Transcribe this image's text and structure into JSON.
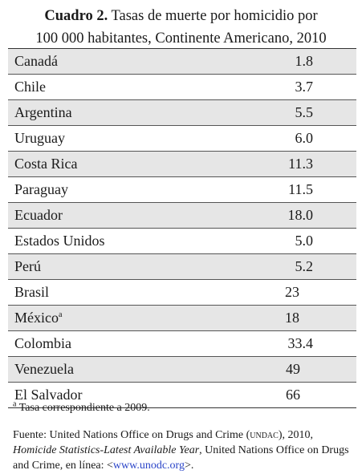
{
  "title": {
    "label": "Cuadro 2.",
    "text_line1": "Tasas de muerte por homicidio por",
    "text_line2": "100 000 habitantes, Continente Americano, 2010"
  },
  "rows": [
    {
      "name": "Canadá",
      "value": "1.8"
    },
    {
      "name": "Chile",
      "value": "3.7"
    },
    {
      "name": "Argentina",
      "value": "5.5"
    },
    {
      "name": "Uruguay",
      "value": "6.0"
    },
    {
      "name": "Costa Rica",
      "value": "11.3"
    },
    {
      "name": "Paraguay",
      "value": "11.5"
    },
    {
      "name": "Ecuador",
      "value": "18.0"
    },
    {
      "name": "Estados Unidos",
      "value": "5.0"
    },
    {
      "name": "Perú",
      "value": "5.2"
    },
    {
      "name": "Brasil",
      "value": "23"
    },
    {
      "name": "México",
      "sup": "a",
      "value": "18"
    },
    {
      "name": "Colombia",
      "value": "33.4"
    },
    {
      "name": "Venezuela",
      "value": "49"
    },
    {
      "name": "El Salvador",
      "value": "66"
    }
  ],
  "footnote": {
    "marker": "a",
    "text": "Tasa correspondiente a 2009."
  },
  "source": {
    "prefix": "Fuente: United Nations Office on Drugs and Crime (",
    "acronym": "undac",
    "after_acronym": "), 2010,",
    "italic_title": "Homicide Statistics-Latest Available Year",
    "after_title": ", United Nations Office on Drugs and Crime, en línea: <",
    "url": "www.unodc.org",
    "suffix": ">."
  },
  "colors": {
    "shaded_row": "#e6e6e6",
    "link": "#2a44c8"
  }
}
